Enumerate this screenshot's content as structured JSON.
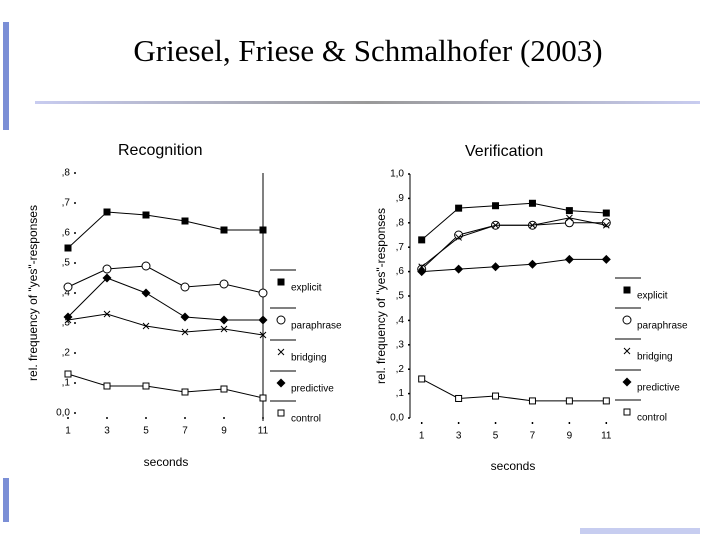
{
  "title": "Griesel, Friese & Schmalhofer (2003)",
  "chart_data": [
    {
      "type": "line",
      "title": "Recognition",
      "xlabel": "seconds",
      "ylabel": "rel. frequency of \"yes\"-responses",
      "x": [
        1,
        3,
        5,
        7,
        9,
        11
      ],
      "xlim": [
        1,
        11
      ],
      "xticks": [
        1,
        3,
        5,
        7,
        9,
        11
      ],
      "ylim": [
        0,
        0.8
      ],
      "yticks": [
        {
          "value": 0,
          "label": "0,0"
        },
        {
          "value": 0.1,
          "label": ",1"
        },
        {
          "value": 0.2,
          "label": ",2"
        },
        {
          "value": 0.3,
          "label": ",3"
        },
        {
          "value": 0.4,
          "label": ",4"
        },
        {
          "value": 0.5,
          "label": ",5"
        },
        {
          "value": 0.6,
          "label": ",6"
        },
        {
          "value": 0.7,
          "label": ",7"
        },
        {
          "value": 0.8,
          "label": ",8"
        }
      ],
      "series": [
        {
          "name": "explicit",
          "color": "#000000",
          "marker": "square",
          "values": [
            0.55,
            0.67,
            0.66,
            0.64,
            0.61,
            0.61
          ]
        },
        {
          "name": "paraphrase",
          "color": "#000000",
          "marker": "circle",
          "values": [
            0.42,
            0.48,
            0.49,
            0.42,
            0.43,
            0.4
          ]
        },
        {
          "name": "bridging",
          "color": "#000000",
          "marker": "x",
          "values": [
            0.31,
            0.33,
            0.29,
            0.27,
            0.28,
            0.26
          ]
        },
        {
          "name": "predictive",
          "color": "#000000",
          "marker": "diamond",
          "values": [
            0.32,
            0.45,
            0.4,
            0.32,
            0.31,
            0.31
          ]
        },
        {
          "name": "control",
          "color": "#000000",
          "marker": "open-square",
          "values": [
            0.13,
            0.09,
            0.09,
            0.07,
            0.08,
            0.05
          ]
        }
      ]
    },
    {
      "type": "line",
      "title": "Verification",
      "xlabel": "seconds",
      "ylabel": "rel. frequency of \"yes\"-responses",
      "x": [
        1,
        3,
        5,
        7,
        9,
        11
      ],
      "xlim": [
        0.8,
        11.2
      ],
      "xticks": [
        1,
        3,
        5,
        7,
        9,
        11
      ],
      "ylim": [
        0,
        1
      ],
      "yticks": [
        {
          "value": 0,
          "label": "0,0"
        },
        {
          "value": 0.1,
          "label": ",1"
        },
        {
          "value": 0.2,
          "label": ",2"
        },
        {
          "value": 0.3,
          "label": ",3"
        },
        {
          "value": 0.4,
          "label": ",4"
        },
        {
          "value": 0.5,
          "label": ",5"
        },
        {
          "value": 0.6,
          "label": ",6"
        },
        {
          "value": 0.7,
          "label": ",7"
        },
        {
          "value": 0.8,
          "label": ",8"
        },
        {
          "value": 0.9,
          "label": ",9"
        },
        {
          "value": 1,
          "label": "1,0"
        }
      ],
      "series": [
        {
          "name": "explicit",
          "color": "#000000",
          "marker": "square",
          "values": [
            0.73,
            0.86,
            0.87,
            0.88,
            0.85,
            0.84
          ]
        },
        {
          "name": "paraphrase",
          "color": "#000000",
          "marker": "circle",
          "values": [
            0.61,
            0.75,
            0.79,
            0.79,
            0.8,
            0.8
          ]
        },
        {
          "name": "bridging",
          "color": "#000000",
          "marker": "x",
          "values": [
            0.62,
            0.74,
            0.79,
            0.79,
            0.82,
            0.79
          ]
        },
        {
          "name": "predictive",
          "color": "#000000",
          "marker": "diamond",
          "values": [
            0.6,
            0.61,
            0.62,
            0.63,
            0.65,
            0.65
          ]
        },
        {
          "name": "control",
          "color": "#000000",
          "marker": "open-square",
          "values": [
            0.16,
            0.08,
            0.09,
            0.07,
            0.07,
            0.07
          ]
        }
      ]
    }
  ]
}
